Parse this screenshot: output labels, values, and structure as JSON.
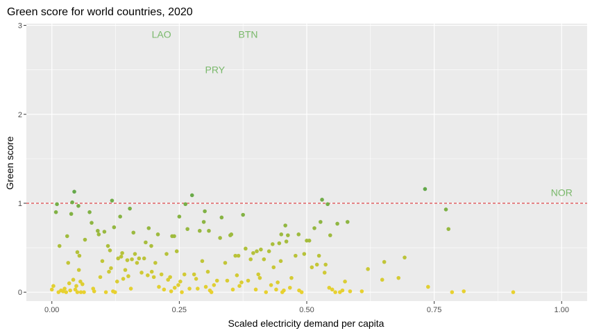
{
  "chart_data": {
    "type": "scatter",
    "title": "Green score for world countries, 2020",
    "xlabel": "Scaled electricity demand per capita",
    "ylabel": "Green score",
    "xlim": [
      -0.05,
      1.05
    ],
    "ylim": [
      -0.1,
      3.02
    ],
    "x_ticks": [
      0.0,
      0.25,
      0.5,
      0.75,
      1.0
    ],
    "x_tick_labels": [
      "0.00",
      "0.25",
      "0.50",
      "0.75",
      "1.00"
    ],
    "y_ticks": [
      0,
      1,
      2,
      3
    ],
    "y_tick_labels": [
      "0",
      "1",
      "2",
      "3"
    ],
    "grid": true,
    "reference_line": {
      "y": 1,
      "style": "dashed",
      "color": "#d7191c"
    },
    "colors": {
      "low": "#e8d130",
      "high": "#63a84a",
      "panel": "#ebebeb",
      "grid": "#ffffff",
      "label": "#79b86a"
    },
    "labels": [
      {
        "text": "LAO",
        "x": 0.215,
        "y": 2.9
      },
      {
        "text": "BTN",
        "x": 0.385,
        "y": 2.9
      },
      {
        "text": "PRY",
        "x": 0.32,
        "y": 2.5
      },
      {
        "text": "NOR",
        "x": 1.0,
        "y": 1.12
      }
    ],
    "points": [
      [
        0.0,
        0.03
      ],
      [
        0.003,
        0.07
      ],
      [
        0.008,
        0.9
      ],
      [
        0.01,
        0.99
      ],
      [
        0.013,
        0.0
      ],
      [
        0.015,
        0.52
      ],
      [
        0.018,
        0.02
      ],
      [
        0.022,
        0.01
      ],
      [
        0.025,
        0.04
      ],
      [
        0.028,
        0.0
      ],
      [
        0.03,
        0.63
      ],
      [
        0.032,
        0.33
      ],
      [
        0.034,
        0.1
      ],
      [
        0.036,
        0.02
      ],
      [
        0.038,
        0.88
      ],
      [
        0.04,
        1.01
      ],
      [
        0.042,
        0.14
      ],
      [
        0.044,
        1.13
      ],
      [
        0.046,
        0.03
      ],
      [
        0.048,
        0.07
      ],
      [
        0.05,
        0.0
      ],
      [
        0.05,
        0.45
      ],
      [
        0.052,
        0.97
      ],
      [
        0.053,
        0.25
      ],
      [
        0.054,
        0.41
      ],
      [
        0.056,
        0.12
      ],
      [
        0.057,
        0.0
      ],
      [
        0.06,
        0.09
      ],
      [
        0.063,
        0.0
      ],
      [
        0.065,
        0.59
      ],
      [
        0.074,
        0.9
      ],
      [
        0.078,
        0.78
      ],
      [
        0.081,
        0.04
      ],
      [
        0.083,
        0.01
      ],
      [
        0.09,
        0.69
      ],
      [
        0.092,
        0.65
      ],
      [
        0.095,
        0.17
      ],
      [
        0.099,
        0.35
      ],
      [
        0.103,
        0.68
      ],
      [
        0.106,
        0.0
      ],
      [
        0.11,
        0.52
      ],
      [
        0.112,
        0.23
      ],
      [
        0.114,
        0.47
      ],
      [
        0.116,
        0.27
      ],
      [
        0.118,
        1.03
      ],
      [
        0.12,
        0.01
      ],
      [
        0.122,
        0.73
      ],
      [
        0.124,
        0.0
      ],
      [
        0.128,
        0.12
      ],
      [
        0.13,
        0.38
      ],
      [
        0.134,
        0.85
      ],
      [
        0.136,
        0.4
      ],
      [
        0.138,
        0.44
      ],
      [
        0.14,
        0.15
      ],
      [
        0.144,
        0.25
      ],
      [
        0.148,
        0.36
      ],
      [
        0.15,
        0.18
      ],
      [
        0.153,
        0.94
      ],
      [
        0.155,
        0.04
      ],
      [
        0.157,
        0.37
      ],
      [
        0.16,
        0.67
      ],
      [
        0.163,
        0.43
      ],
      [
        0.167,
        0.33
      ],
      [
        0.171,
        0.38
      ],
      [
        0.176,
        0.22
      ],
      [
        0.181,
        0.38
      ],
      [
        0.184,
        0.56
      ],
      [
        0.188,
        0.19
      ],
      [
        0.19,
        0.72
      ],
      [
        0.195,
        0.52
      ],
      [
        0.196,
        0.23
      ],
      [
        0.2,
        0.17
      ],
      [
        0.203,
        0.33
      ],
      [
        0.208,
        0.65
      ],
      [
        0.21,
        0.06
      ],
      [
        0.215,
        0.2
      ],
      [
        0.22,
        0.03
      ],
      [
        0.225,
        0.43
      ],
      [
        0.228,
        0.14
      ],
      [
        0.232,
        0.17
      ],
      [
        0.234,
        0.01
      ],
      [
        0.236,
        0.63
      ],
      [
        0.24,
        0.63
      ],
      [
        0.241,
        0.05
      ],
      [
        0.245,
        0.46
      ],
      [
        0.248,
        0.08
      ],
      [
        0.25,
        0.85
      ],
      [
        0.252,
        0.12
      ],
      [
        0.255,
        0.0
      ],
      [
        0.26,
        0.2
      ],
      [
        0.262,
        0.99
      ],
      [
        0.266,
        0.71
      ],
      [
        0.27,
        0.04
      ],
      [
        0.275,
        1.09
      ],
      [
        0.279,
        0.2
      ],
      [
        0.283,
        0.15
      ],
      [
        0.286,
        0.04
      ],
      [
        0.29,
        0.69
      ],
      [
        0.295,
        0.35
      ],
      [
        0.298,
        0.79
      ],
      [
        0.3,
        0.91
      ],
      [
        0.302,
        0.06
      ],
      [
        0.306,
        0.23
      ],
      [
        0.308,
        0.69
      ],
      [
        0.31,
        0.02
      ],
      [
        0.313,
        0.0
      ],
      [
        0.318,
        0.08
      ],
      [
        0.324,
        0.13
      ],
      [
        0.33,
        0.61
      ],
      [
        0.333,
        0.84
      ],
      [
        0.34,
        0.33
      ],
      [
        0.344,
        0.13
      ],
      [
        0.35,
        0.64
      ],
      [
        0.352,
        0.65
      ],
      [
        0.355,
        0.03
      ],
      [
        0.36,
        0.41
      ],
      [
        0.363,
        0.19
      ],
      [
        0.366,
        0.41
      ],
      [
        0.368,
        0.07
      ],
      [
        0.372,
        0.11
      ],
      [
        0.375,
        0.87
      ],
      [
        0.38,
        0.49
      ],
      [
        0.385,
        0.13
      ],
      [
        0.39,
        0.37
      ],
      [
        0.395,
        0.44
      ],
      [
        0.4,
        0.03
      ],
      [
        0.402,
        0.46
      ],
      [
        0.405,
        0.2
      ],
      [
        0.408,
        0.16
      ],
      [
        0.41,
        0.48
      ],
      [
        0.416,
        0.37
      ],
      [
        0.42,
        0.0
      ],
      [
        0.426,
        0.46
      ],
      [
        0.43,
        0.08
      ],
      [
        0.433,
        0.54
      ],
      [
        0.435,
        0.28
      ],
      [
        0.44,
        0.03
      ],
      [
        0.443,
        0.11
      ],
      [
        0.446,
        0.55
      ],
      [
        0.449,
        0.35
      ],
      [
        0.45,
        0.65
      ],
      [
        0.452,
        0.0
      ],
      [
        0.455,
        0.02
      ],
      [
        0.458,
        0.75
      ],
      [
        0.46,
        0.57
      ],
      [
        0.463,
        0.64
      ],
      [
        0.467,
        0.05
      ],
      [
        0.47,
        0.16
      ],
      [
        0.478,
        0.41
      ],
      [
        0.484,
        0.65
      ],
      [
        0.485,
        0.02
      ],
      [
        0.49,
        0.0
      ],
      [
        0.495,
        0.43
      ],
      [
        0.5,
        0.58
      ],
      [
        0.505,
        0.58
      ],
      [
        0.51,
        0.28
      ],
      [
        0.515,
        0.72
      ],
      [
        0.52,
        0.31
      ],
      [
        0.524,
        0.41
      ],
      [
        0.527,
        0.79
      ],
      [
        0.53,
        1.04
      ],
      [
        0.535,
        0.22
      ],
      [
        0.537,
        0.31
      ],
      [
        0.541,
        0.99
      ],
      [
        0.544,
        0.05
      ],
      [
        0.546,
        0.64
      ],
      [
        0.55,
        0.03
      ],
      [
        0.556,
        0.0
      ],
      [
        0.56,
        0.77
      ],
      [
        0.565,
        0.0
      ],
      [
        0.57,
        0.02
      ],
      [
        0.575,
        0.12
      ],
      [
        0.58,
        0.79
      ],
      [
        0.585,
        0.01
      ],
      [
        0.608,
        0.01
      ],
      [
        0.62,
        0.26
      ],
      [
        0.648,
        0.14
      ],
      [
        0.652,
        0.34
      ],
      [
        0.68,
        0.16
      ],
      [
        0.692,
        0.39
      ],
      [
        0.732,
        1.16
      ],
      [
        0.738,
        0.06
      ],
      [
        0.773,
        0.93
      ],
      [
        0.778,
        0.71
      ],
      [
        0.785,
        0.0
      ],
      [
        0.808,
        0.01
      ],
      [
        0.905,
        0.0
      ]
    ]
  }
}
